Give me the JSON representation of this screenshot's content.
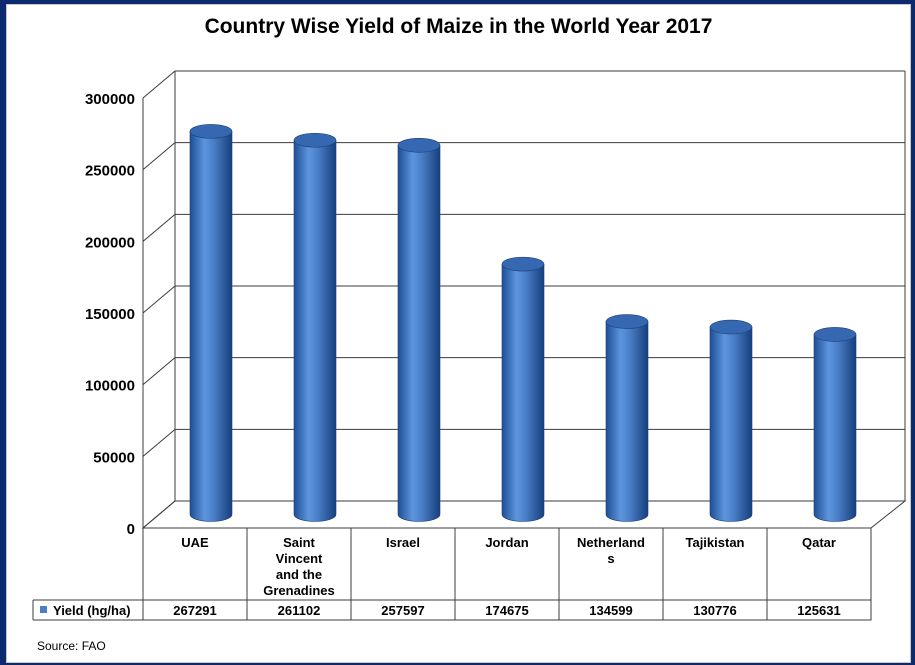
{
  "chart_data": {
    "type": "bar",
    "title": "Country Wise Yield of Maize in the World Year 2017",
    "categories": [
      "UAE",
      "Saint Vincent and the Grenadines",
      "Israel",
      "Jordan",
      "Netherlands",
      "Tajikistan",
      "Qatar"
    ],
    "category_display_lines": [
      [
        "UAE"
      ],
      [
        "Saint",
        "Vincent",
        "and the",
        "Grenadines"
      ],
      [
        "Israel"
      ],
      [
        "Jordan"
      ],
      [
        "Netherland",
        "s"
      ],
      [
        "Tajikistan"
      ],
      [
        "Qatar"
      ]
    ],
    "series": [
      {
        "name": "Yield (hg/ha)",
        "values": [
          267291,
          261102,
          257597,
          174675,
          134599,
          130776,
          125631
        ],
        "color": "#4a7fc8"
      }
    ],
    "value_labels": [
      "267291",
      "261102",
      "257597",
      "174675",
      "134599",
      "130776",
      "125631"
    ],
    "ylim": [
      0,
      300000
    ],
    "yticks": [
      0,
      50000,
      100000,
      150000,
      200000,
      250000,
      300000
    ],
    "ytick_labels": [
      "0",
      "50000",
      "100000",
      "150000",
      "200000",
      "250000",
      "300000"
    ],
    "grid": true,
    "legend": "data-table",
    "source": "Source: FAO"
  }
}
